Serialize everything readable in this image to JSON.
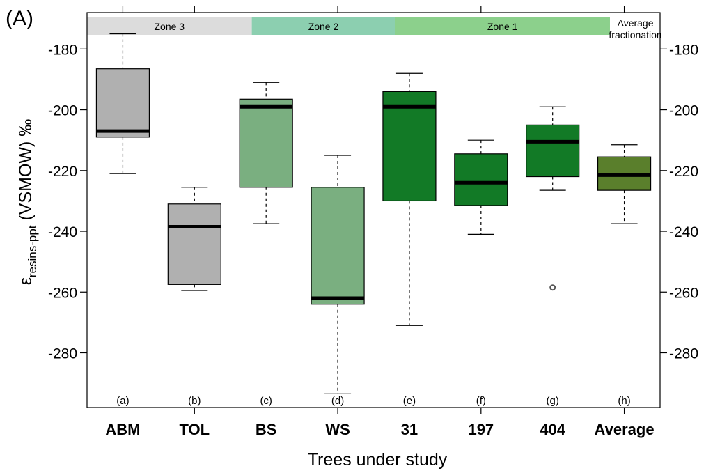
{
  "chart_data": {
    "type": "boxplot",
    "panel_label": "(A)",
    "xlabel": "Trees under study",
    "ylabel_main": "ε",
    "ylabel_sub": "resins-ppt",
    "ylabel_tail": " (VSMOW) ‰",
    "ylim": [
      -298,
      -168
    ],
    "yticks": [
      -180,
      -200,
      -220,
      -240,
      -260,
      -280
    ],
    "zones": [
      {
        "label": "Zone 3",
        "from": 0,
        "to": 2.3,
        "color": "#dcdcdc"
      },
      {
        "label": "Zone 2",
        "from": 2.3,
        "to": 4.3,
        "color": "#8ccfb0"
      },
      {
        "label": "Zone 1",
        "from": 4.3,
        "to": 7.3,
        "color": "#8cd08c"
      }
    ],
    "average_zone_label": [
      "Average",
      "fractionation"
    ],
    "categories": [
      {
        "name": "ABM",
        "letter": "(a)",
        "whisker_low": -221,
        "q1": -209,
        "median": -207,
        "q3": -186.5,
        "whisker_high": -175,
        "outliers": [],
        "color": "#b0b0b0"
      },
      {
        "name": "TOL",
        "letter": "(b)",
        "whisker_low": -259.5,
        "q1": -257.5,
        "median": -238.5,
        "q3": -231,
        "whisker_high": -225.5,
        "outliers": [],
        "color": "#b0b0b0"
      },
      {
        "name": "BS",
        "letter": "(c)",
        "whisker_low": -237.5,
        "q1": -225.5,
        "median": -199,
        "q3": -196.5,
        "whisker_high": -191,
        "outliers": [],
        "color": "#7aaf80"
      },
      {
        "name": "WS",
        "letter": "(d)",
        "whisker_low": -293.5,
        "q1": -264,
        "median": -262,
        "q3": -225.5,
        "whisker_high": -215,
        "outliers": [],
        "color": "#7aaf80"
      },
      {
        "name": "31",
        "letter": "(e)",
        "whisker_low": -271,
        "q1": -230,
        "median": -199,
        "q3": -194,
        "whisker_high": -188,
        "outliers": [],
        "color": "#127a26"
      },
      {
        "name": "197",
        "letter": "(f)",
        "whisker_low": -241,
        "q1": -231.5,
        "median": -224,
        "q3": -214.5,
        "whisker_high": -210,
        "outliers": [],
        "color": "#127a26"
      },
      {
        "name": "404",
        "letter": "(g)",
        "whisker_low": -226.5,
        "q1": -222,
        "median": -210.5,
        "q3": -205,
        "whisker_high": -199,
        "outliers": [
          -258.5
        ],
        "color": "#127a26"
      },
      {
        "name": "Average",
        "letter": "(h)",
        "whisker_low": -237.5,
        "q1": -226.5,
        "median": -221.5,
        "q3": -215.5,
        "whisker_high": -211.5,
        "outliers": [],
        "color": "#5a7f2c"
      }
    ]
  }
}
